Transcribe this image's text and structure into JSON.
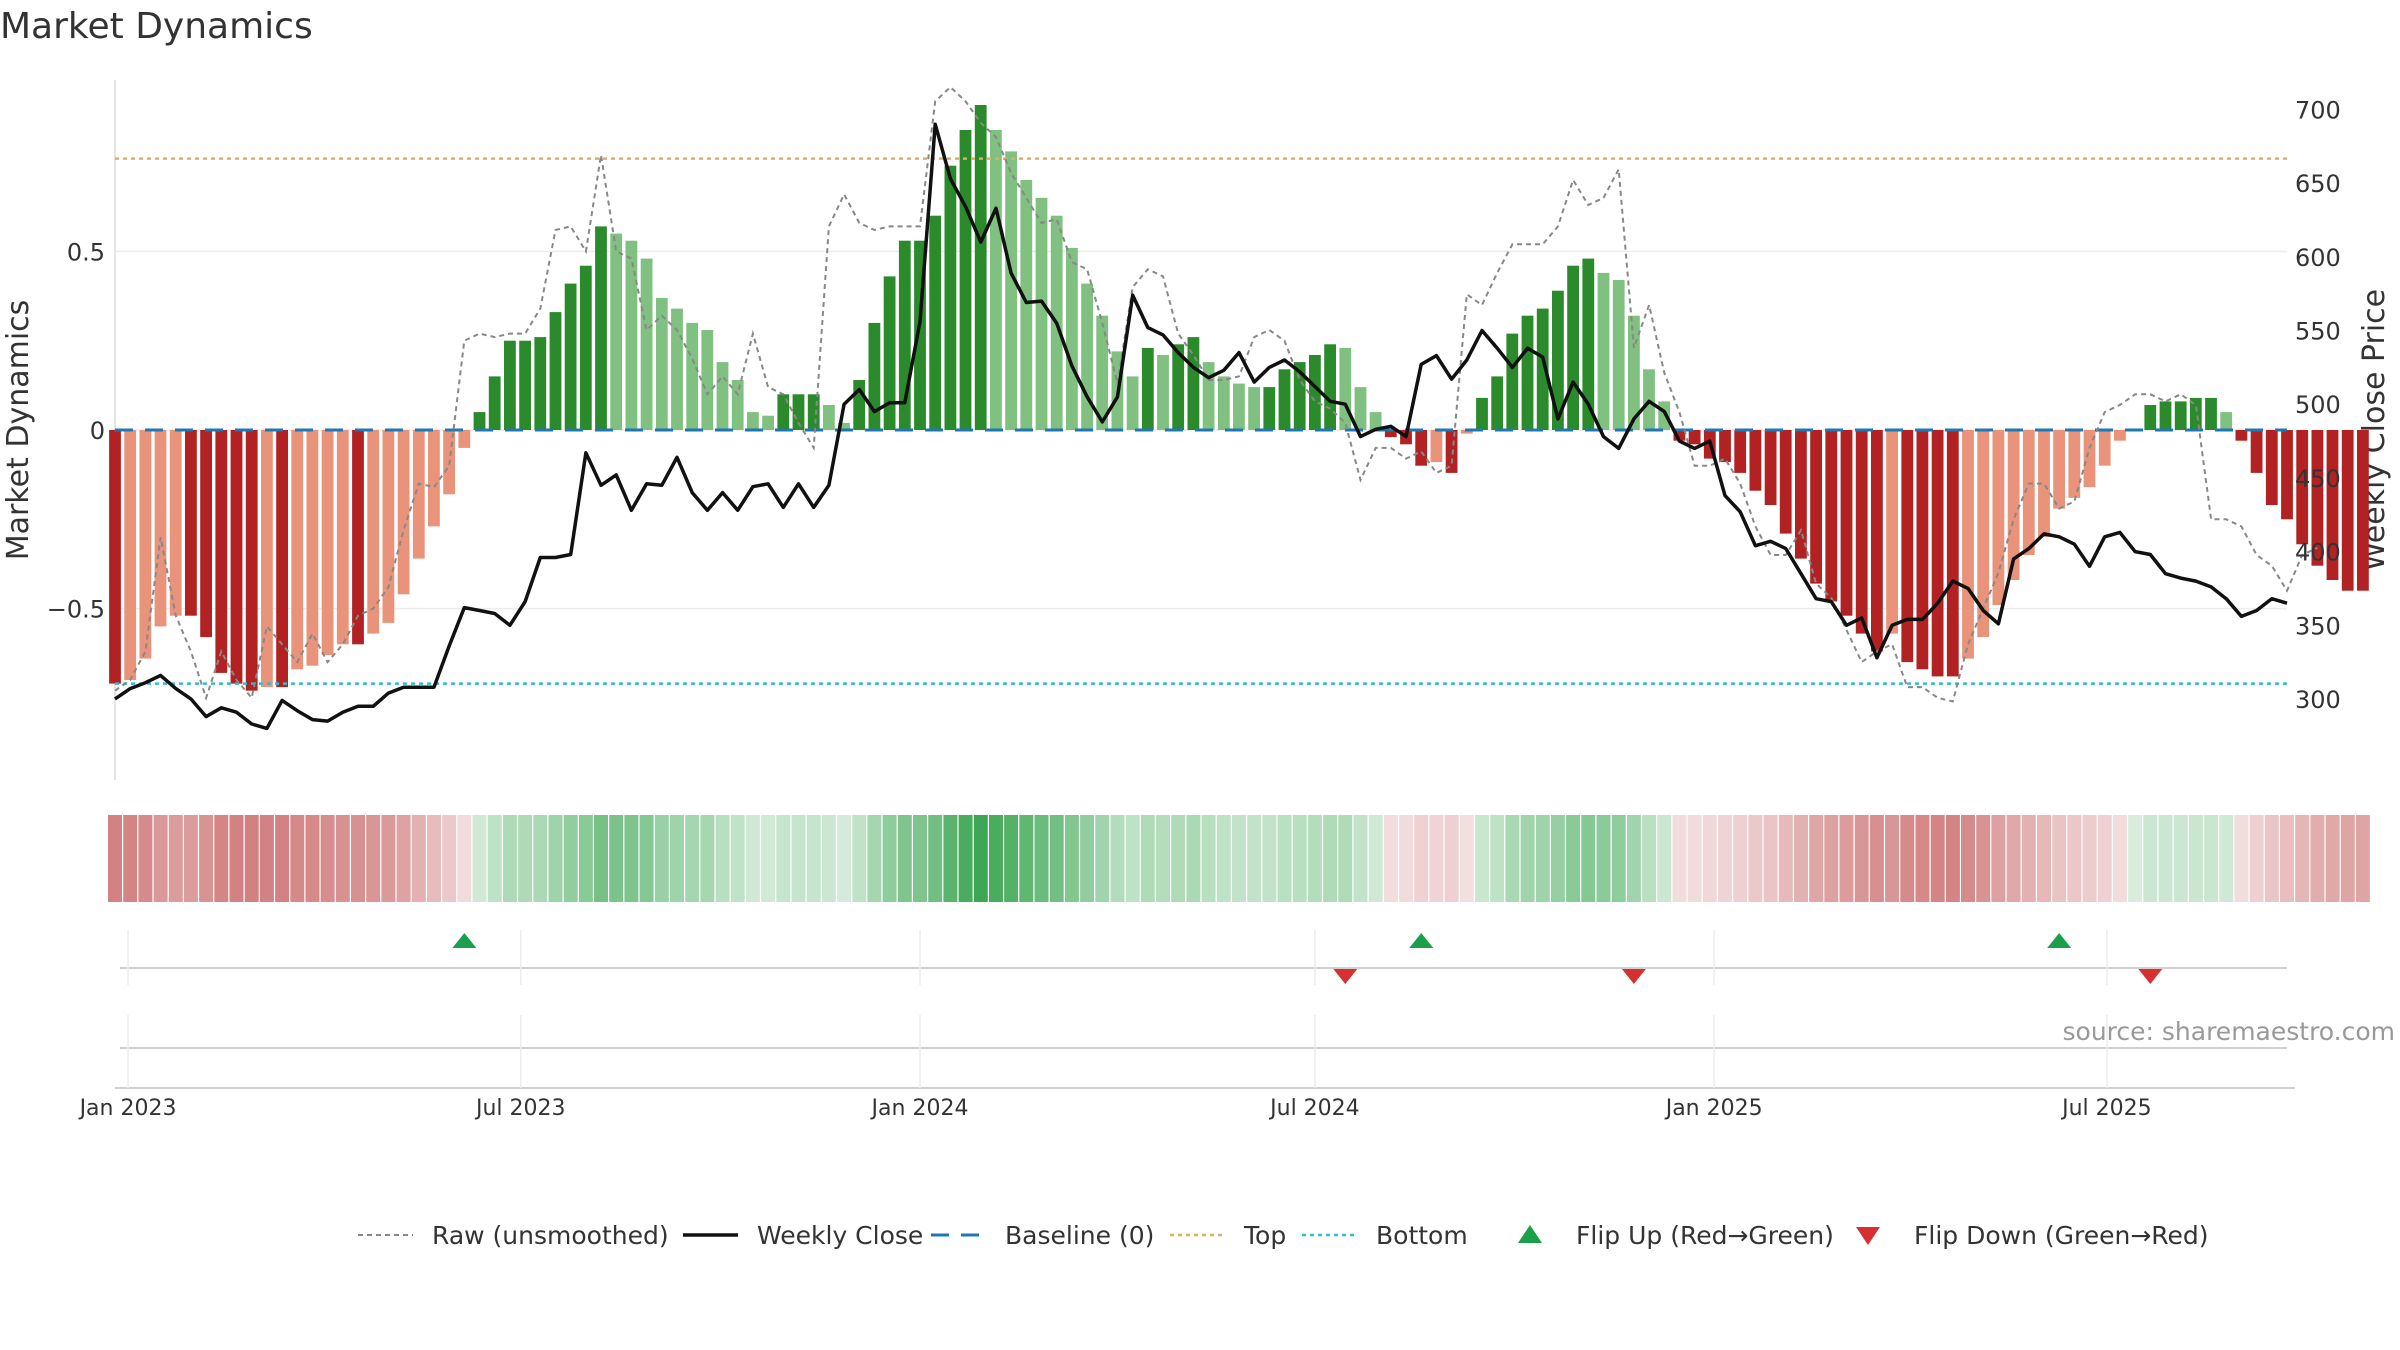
{
  "chart_data": {
    "type": "bar",
    "title": "Market Dynamics",
    "ylabel_left": "Market Dynamics",
    "ylabel_right": "Weekly Close Price",
    "ylim_left": [
      -0.98,
      0.98
    ],
    "ylim_right": [
      245,
      720
    ],
    "yticks_left": [
      {
        "v": 0.5,
        "label": "0.5"
      },
      {
        "v": 0,
        "label": "0"
      },
      {
        "v": -0.5,
        "label": "−0.5"
      }
    ],
    "yticks_right": [
      {
        "v": 700,
        "label": "700"
      },
      {
        "v": 650,
        "label": "650"
      },
      {
        "v": 600,
        "label": "600"
      },
      {
        "v": 550,
        "label": "550"
      },
      {
        "v": 500,
        "label": "500"
      },
      {
        "v": 450,
        "label": "450"
      },
      {
        "v": 400,
        "label": "400"
      },
      {
        "v": 350,
        "label": "350"
      },
      {
        "v": 300,
        "label": "300"
      }
    ],
    "x_start": "2022-12-26",
    "x_end": "2025-09-22",
    "x_ticks": [
      {
        "date": "2023-01-01",
        "label": "Jan 2023"
      },
      {
        "date": "2023-07-01",
        "label": "Jul 2023"
      },
      {
        "date": "2024-01-01",
        "label": "Jan 2024"
      },
      {
        "date": "2024-07-01",
        "label": "Jul 2024"
      },
      {
        "date": "2025-01-01",
        "label": "Jan 2025"
      },
      {
        "date": "2025-07-01",
        "label": "Jul 2025"
      }
    ],
    "top_level": 0.76,
    "bottom_level": -0.71,
    "grid": true,
    "legend_position": "bottom",
    "weeks_start": "2022-12-26",
    "dynamics": [
      -0.71,
      -0.7,
      -0.64,
      -0.55,
      -0.52,
      -0.52,
      -0.58,
      -0.68,
      -0.71,
      -0.73,
      -0.72,
      -0.72,
      -0.67,
      -0.66,
      -0.63,
      -0.6,
      -0.6,
      -0.57,
      -0.54,
      -0.46,
      -0.36,
      -0.27,
      -0.18,
      -0.05,
      0.05,
      0.15,
      0.25,
      0.25,
      0.26,
      0.33,
      0.41,
      0.46,
      0.57,
      0.55,
      0.53,
      0.48,
      0.37,
      0.34,
      0.3,
      0.28,
      0.19,
      0.14,
      0.05,
      0.04,
      0.1,
      0.1,
      0.1,
      0.07,
      0.02,
      0.14,
      0.3,
      0.43,
      0.53,
      0.53,
      0.6,
      0.74,
      0.84,
      0.91,
      0.84,
      0.78,
      0.7,
      0.65,
      0.6,
      0.51,
      0.41,
      0.32,
      0.22,
      0.15,
      0.23,
      0.21,
      0.24,
      0.26,
      0.19,
      0.15,
      0.13,
      0.12,
      0.12,
      0.17,
      0.19,
      0.21,
      0.24,
      0.23,
      0.12,
      0.05,
      -0.02,
      -0.04,
      -0.1,
      -0.09,
      -0.12,
      -0.01,
      0.09,
      0.15,
      0.27,
      0.32,
      0.34,
      0.39,
      0.46,
      0.48,
      0.44,
      0.42,
      0.32,
      0.17,
      0.08,
      -0.03,
      -0.04,
      -0.08,
      -0.09,
      -0.12,
      -0.17,
      -0.21,
      -0.29,
      -0.36,
      -0.43,
      -0.48,
      -0.52,
      -0.57,
      -0.62,
      -0.57,
      -0.65,
      -0.67,
      -0.69,
      -0.69,
      -0.64,
      -0.58,
      -0.49,
      -0.42,
      -0.35,
      -0.3,
      -0.22,
      -0.19,
      -0.16,
      -0.1,
      -0.03,
      0.0,
      0.07,
      0.08,
      0.08,
      0.09,
      0.09,
      0.05,
      -0.03,
      -0.12,
      -0.21,
      -0.25,
      -0.32,
      -0.38,
      -0.42,
      -0.45,
      -0.45
    ],
    "raw": [
      -0.73,
      -0.7,
      -0.62,
      -0.3,
      -0.52,
      -0.62,
      -0.75,
      -0.62,
      -0.7,
      -0.75,
      -0.55,
      -0.6,
      -0.65,
      -0.57,
      -0.65,
      -0.6,
      -0.52,
      -0.5,
      -0.44,
      -0.28,
      -0.15,
      -0.16,
      -0.1,
      0.25,
      0.27,
      0.26,
      0.27,
      0.27,
      0.34,
      0.56,
      0.57,
      0.5,
      0.77,
      0.5,
      0.48,
      0.28,
      0.32,
      0.28,
      0.2,
      0.1,
      0.15,
      0.1,
      0.27,
      0.12,
      0.1,
      0.02,
      -0.05,
      0.57,
      0.66,
      0.58,
      0.56,
      0.57,
      0.57,
      0.57,
      0.92,
      0.96,
      0.92,
      0.86,
      0.82,
      0.72,
      0.65,
      0.58,
      0.59,
      0.47,
      0.45,
      0.3,
      0.13,
      0.4,
      0.45,
      0.43,
      0.27,
      0.21,
      0.14,
      0.14,
      0.15,
      0.26,
      0.28,
      0.25,
      0.14,
      0.08,
      0.06,
      0.02,
      -0.14,
      -0.05,
      -0.05,
      -0.08,
      -0.06,
      -0.12,
      -0.1,
      0.38,
      0.35,
      0.44,
      0.52,
      0.52,
      0.52,
      0.57,
      0.7,
      0.63,
      0.65,
      0.73,
      0.23,
      0.35,
      0.16,
      0.05,
      -0.1,
      -0.1,
      -0.08,
      -0.15,
      -0.27,
      -0.35,
      -0.35,
      -0.28,
      -0.43,
      -0.47,
      -0.56,
      -0.65,
      -0.62,
      -0.6,
      -0.72,
      -0.72,
      -0.75,
      -0.76,
      -0.6,
      -0.5,
      -0.4,
      -0.25,
      -0.15,
      -0.15,
      -0.22,
      -0.2,
      -0.05,
      0.05,
      0.07,
      0.1,
      0.1,
      0.08,
      0.1,
      0.07,
      -0.25,
      -0.25,
      -0.27,
      -0.35,
      -0.38,
      -0.45,
      -0.35,
      -0.33
    ],
    "weekly_close": [
      300,
      307,
      311,
      316,
      307,
      300,
      288,
      294,
      291,
      283,
      280,
      299,
      292,
      286,
      285,
      291,
      295,
      295,
      304,
      308,
      308,
      308,
      336,
      362,
      360,
      358,
      350,
      366,
      396,
      396,
      398,
      467,
      445,
      452,
      428,
      446,
      445,
      464,
      440,
      428,
      440,
      428,
      444,
      446,
      430,
      446,
      430,
      445,
      500,
      510,
      495,
      501,
      501,
      556,
      690,
      653,
      634,
      610,
      633,
      589,
      569,
      570,
      555,
      526,
      505,
      488,
      505,
      574,
      552,
      547,
      535,
      525,
      518,
      523,
      535,
      515,
      525,
      530,
      522,
      512,
      502,
      500,
      478,
      483,
      485,
      478,
      527,
      533,
      517,
      530,
      550,
      538,
      525,
      538,
      532,
      490,
      515,
      500,
      478,
      470,
      490,
      502,
      495,
      475,
      470,
      475,
      438,
      427,
      404,
      407,
      402,
      385,
      368,
      366,
      350,
      355,
      328,
      350,
      354,
      354,
      365,
      380,
      375,
      360,
      351,
      395,
      402,
      412,
      410,
      405,
      390,
      410,
      413,
      400,
      398,
      385,
      382,
      380,
      376,
      368,
      356,
      360,
      368,
      365
    ],
    "flip_up": [
      "2023-06-05",
      "2024-08-19",
      "2025-06-09"
    ],
    "flip_down": [
      "2024-07-15",
      "2024-11-25",
      "2025-07-21"
    ],
    "colors": {
      "strong_green": "#2b8a2b",
      "light_green": "#80c080",
      "strong_red": "#b22222",
      "light_red": "#e8937a",
      "raw": "#888888",
      "close": "#111111",
      "baseline": "#1f77b4",
      "top": "#ddb060",
      "bottom": "#2bbfcf",
      "flip_up": "#1aa04a",
      "flip_down": "#d63030"
    }
  },
  "legend": [
    {
      "label": "Raw (unsmoothed)",
      "kind": "raw"
    },
    {
      "label": "Weekly Close",
      "kind": "close"
    },
    {
      "label": "Baseline (0)",
      "kind": "baseline"
    },
    {
      "label": "Top",
      "kind": "top"
    },
    {
      "label": "Bottom",
      "kind": "bottom"
    },
    {
      "label": "Flip Up (Red→Green)",
      "kind": "up"
    },
    {
      "label": "Flip Down (Green→Red)",
      "kind": "down"
    }
  ],
  "source": "source: sharemaestro.com"
}
